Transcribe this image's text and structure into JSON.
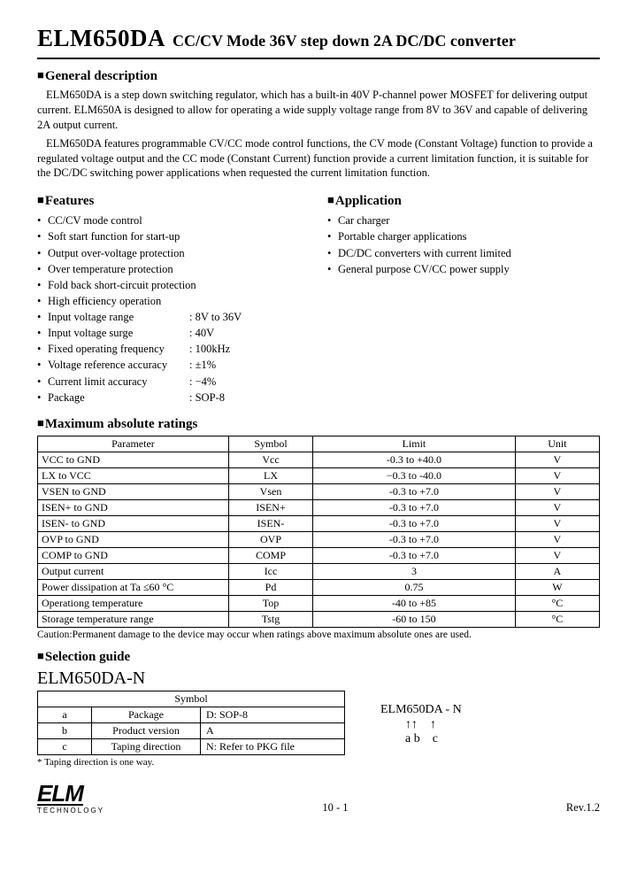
{
  "header": {
    "part_number": "ELM650DA",
    "subtitle": "CC/CV Mode 36V step down 2A DC/DC converter"
  },
  "general": {
    "heading": "General description",
    "p1": "ELM650DA is a step down switching regulator, which has a built-in 40V P-channel power MOSFET for delivering output current. ELM650A is designed to allow for operating a wide supply voltage range from 8V to 36V and capable of delivering 2A output current.",
    "p2": "ELM650DA features programmable CV/CC mode control functions, the CV mode (Constant Voltage) function to provide a regulated voltage output and the CC mode (Constant Current) function provide a current limitation function, it is suitable for the DC/DC switching power applications when requested the current limitation function."
  },
  "features": {
    "heading": "Features",
    "plain": [
      "CC/CV mode control",
      "Soft start function for start-up",
      "Output over-voltage protection",
      "Over temperature protection",
      "Fold back short-circuit protection",
      "High efficiency operation"
    ],
    "specs": [
      {
        "label": "Input voltage  range",
        "value": ": 8V to 36V"
      },
      {
        "label": "Input voltage surge",
        "value": ": 40V"
      },
      {
        "label": "Fixed operating frequency",
        "value": ": 100kHz"
      },
      {
        "label": "Voltage reference accuracy",
        "value": ": ±1%"
      },
      {
        "label": "Current limit accuracy",
        "value": ": −4%"
      },
      {
        "label": "Package",
        "value": ": SOP-8"
      }
    ]
  },
  "application": {
    "heading": "Application",
    "items": [
      "Car charger",
      "Portable charger applications",
      "DC/DC converters with current limited",
      "General purpose CV/CC power supply"
    ]
  },
  "ratings": {
    "heading": "Maximum absolute ratings",
    "columns": [
      "Parameter",
      "Symbol",
      "Limit",
      "Unit"
    ],
    "rows": [
      [
        "VCC to GND",
        "Vcc",
        "-0.3 to +40.0",
        "V"
      ],
      [
        "LX to VCC",
        "LX",
        "−0.3 to -40.0",
        "V"
      ],
      [
        "VSEN to GND",
        "Vsen",
        "-0.3 to +7.0",
        "V"
      ],
      [
        "ISEN+ to GND",
        "ISEN+",
        "-0.3 to +7.0",
        "V"
      ],
      [
        "ISEN- to GND",
        "ISEN-",
        "-0.3 to +7.0",
        "V"
      ],
      [
        "OVP to GND",
        "OVP",
        "-0.3 to +7.0",
        "V"
      ],
      [
        "COMP to GND",
        "COMP",
        "-0.3 to +7.0",
        "V"
      ],
      [
        "Output current",
        "Icc",
        "3",
        "A"
      ],
      [
        "Power dissipation at Ta ≤60 °C",
        "Pd",
        "0.75",
        "W"
      ],
      [
        "Operationg temperature",
        "Top",
        "-40 to +85",
        "°C"
      ],
      [
        "Storage temperature range",
        "Tstg",
        "-60 to 150",
        "°C"
      ]
    ],
    "caution": "Caution:Permanent damage to the device may occur when ratings above maximum absolute ones are used."
  },
  "selection": {
    "heading": "Selection guide",
    "partname": "ELM650DA-N",
    "symbol_header": "Symbol",
    "rows": [
      {
        "k": "a",
        "m": "Package",
        "v": "D: SOP-8"
      },
      {
        "k": "b",
        "m": "Product version",
        "v": "A"
      },
      {
        "k": "c",
        "m": "Taping direction",
        "v": "N: Refer to PKG file"
      }
    ],
    "diagram_l1": "ELM650DA - N",
    "diagram_l2": "        ↑↑    ↑",
    "diagram_l3": "        a b    c",
    "note": "* Taping direction is one way."
  },
  "footer": {
    "logo_text": "ELM",
    "logo_sub": "TECHNOLOGY",
    "page": "10 - 1",
    "rev": "Rev.1.2"
  }
}
